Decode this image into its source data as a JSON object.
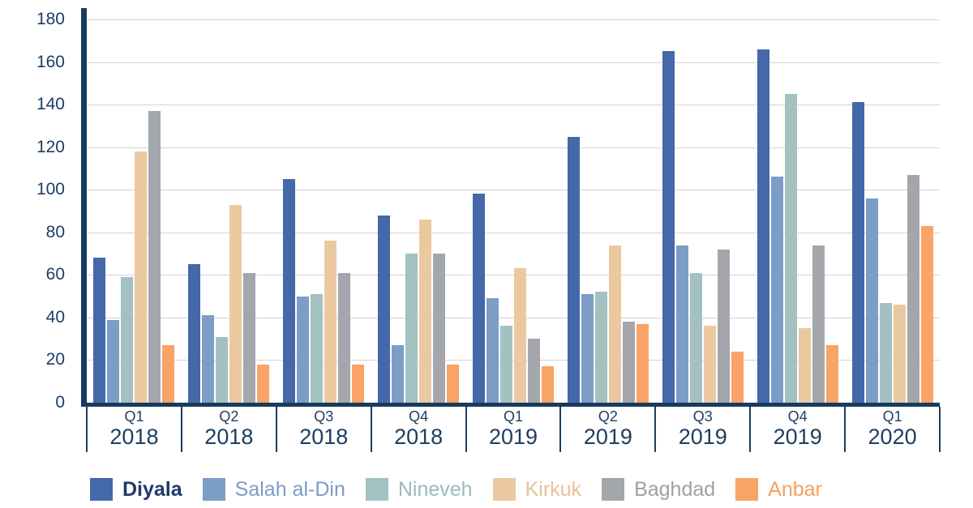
{
  "chart_data": {
    "type": "bar",
    "title": "",
    "xlabel": "",
    "ylabel": "",
    "ylim": [
      0,
      180
    ],
    "ytick_step": 20,
    "yticks": [
      0,
      20,
      40,
      60,
      80,
      100,
      120,
      140,
      160,
      180
    ],
    "grid": true,
    "legend_position": "bottom",
    "axis_color": "#173b5e",
    "grid_color": "#d3d3d5",
    "tick_label_color": "#1c3e63",
    "categories": [
      {
        "quarter": "Q1",
        "year": "2018"
      },
      {
        "quarter": "Q2",
        "year": "2018"
      },
      {
        "quarter": "Q3",
        "year": "2018"
      },
      {
        "quarter": "Q4",
        "year": "2018"
      },
      {
        "quarter": "Q1",
        "year": "2019"
      },
      {
        "quarter": "Q2",
        "year": "2019"
      },
      {
        "quarter": "Q3",
        "year": "2019"
      },
      {
        "quarter": "Q4",
        "year": "2019"
      },
      {
        "quarter": "Q1",
        "year": "2020"
      }
    ],
    "series": [
      {
        "name": "Diyala",
        "color": "#4468a8",
        "label_color": "#1e3a68",
        "label_bold": true,
        "values": [
          68,
          65,
          105,
          88,
          98,
          125,
          165,
          166,
          141
        ]
      },
      {
        "name": "Salah al-Din",
        "color": "#7b9dc6",
        "label_color": "#7b9dc6",
        "label_bold": false,
        "values": [
          39,
          41,
          50,
          27,
          49,
          51,
          74,
          106,
          96
        ]
      },
      {
        "name": "Nineveh",
        "color": "#a3c1c1",
        "label_color": "#9abbbb",
        "label_bold": false,
        "values": [
          59,
          31,
          51,
          70,
          36,
          52,
          61,
          145,
          47
        ]
      },
      {
        "name": "Kirkuk",
        "color": "#ebc9a0",
        "label_color": "#eac094",
        "label_bold": false,
        "values": [
          118,
          93,
          76,
          86,
          63,
          74,
          36,
          35,
          46
        ]
      },
      {
        "name": "Baghdad",
        "color": "#a3a7ab",
        "label_color": "#9da2a6",
        "label_bold": false,
        "values": [
          137,
          61,
          61,
          70,
          30,
          38,
          72,
          74,
          107
        ]
      },
      {
        "name": "Anbar",
        "color": "#f9a367",
        "label_color": "#f7a05f",
        "label_bold": false,
        "values": [
          27,
          18,
          18,
          18,
          17,
          37,
          24,
          27,
          83
        ]
      }
    ]
  }
}
